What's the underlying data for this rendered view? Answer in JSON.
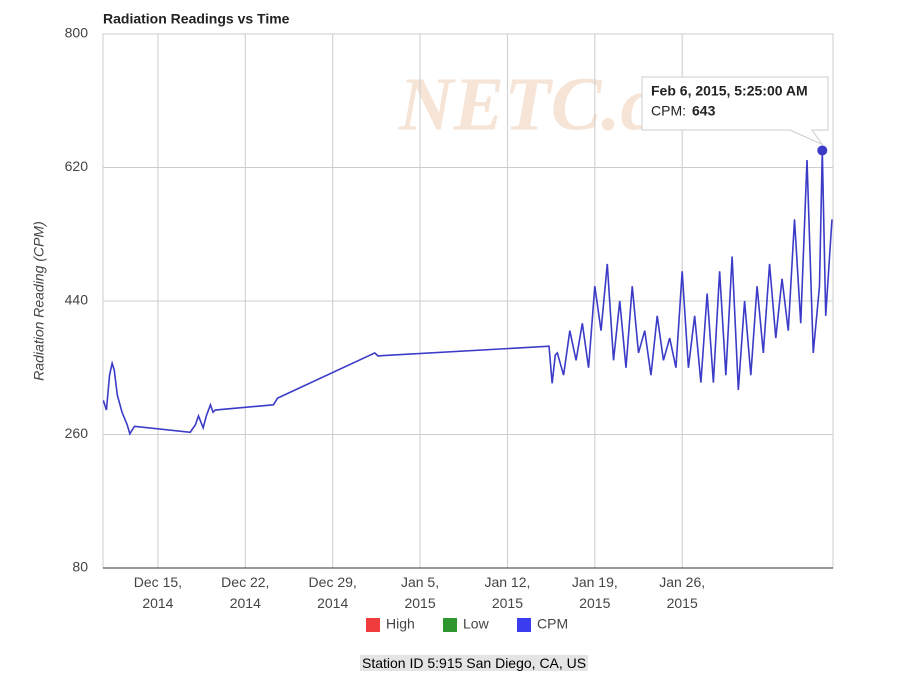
{
  "chart_data": {
    "type": "line",
    "title": "Radiation Readings vs Time",
    "y_label": "Radiation Reading (CPM)",
    "watermark": "NETC.com",
    "footer": "Station ID 5:915  San Diego, CA, US",
    "x": [
      "2014-12-10T15:00",
      "2014-12-10T21:00",
      "2014-12-11T03:00",
      "2014-12-11T08:00",
      "2014-12-11T12:00",
      "2014-12-11T18:00",
      "2014-12-12T03:00",
      "2014-12-12T13:00",
      "2014-12-12T18:00",
      "2014-12-13T03:00",
      "2014-12-17T14:00",
      "2014-12-18T00:00",
      "2014-12-18T06:00",
      "2014-12-18T15:00",
      "2014-12-18T21:00",
      "2014-12-19T05:00",
      "2014-12-19T10:00",
      "2014-12-19T14:00",
      "2014-12-24T06:00",
      "2014-12-24T14:00",
      "2015-01-01T09:00",
      "2015-01-01T15:00",
      "2015-01-15T08:00",
      "2015-01-15T14:00",
      "2015-01-15T20:00",
      "2015-01-16T00:00",
      "2015-01-16T12:00",
      "2015-01-17T00:00",
      "2015-01-17T12:00",
      "2015-01-18T00:00",
      "2015-01-18T12:00",
      "2015-01-19T00:00",
      "2015-01-19T12:00",
      "2015-01-20T00:00",
      "2015-01-20T12:00",
      "2015-01-21T00:00",
      "2015-01-21T12:00",
      "2015-01-22T00:00",
      "2015-01-22T12:00",
      "2015-01-23T00:00",
      "2015-01-23T12:00",
      "2015-01-24T00:00",
      "2015-01-24T12:00",
      "2015-01-25T00:00",
      "2015-01-25T12:00",
      "2015-01-26T00:00",
      "2015-01-26T12:00",
      "2015-01-27T00:00",
      "2015-01-27T12:00",
      "2015-01-28T00:00",
      "2015-01-28T12:00",
      "2015-01-29T00:00",
      "2015-01-29T12:00",
      "2015-01-30T00:00",
      "2015-01-30T12:00",
      "2015-01-31T00:00",
      "2015-01-31T12:00",
      "2015-02-01T00:00",
      "2015-02-01T12:00",
      "2015-02-02T00:00",
      "2015-02-02T12:00",
      "2015-02-03T00:00",
      "2015-02-03T12:00",
      "2015-02-04T00:00",
      "2015-02-04T12:00",
      "2015-02-05T00:00",
      "2015-02-05T12:00",
      "2015-02-06T00:00",
      "2015-02-06T05:25",
      "2015-02-06T12:00",
      "2015-02-07T00:00"
    ],
    "series": [
      {
        "name": "CPM",
        "color": "#3b3bc8",
        "values": [
          306,
          293,
          340,
          356,
          347,
          313,
          290,
          273,
          261,
          271,
          263,
          273,
          285,
          269,
          285,
          300,
          290,
          293,
          300,
          309,
          370,
          366,
          379,
          329,
          367,
          370,
          340,
          400,
          360,
          410,
          350,
          460,
          400,
          490,
          360,
          440,
          350,
          460,
          370,
          400,
          340,
          420,
          360,
          390,
          350,
          480,
          350,
          420,
          330,
          450,
          330,
          480,
          340,
          500,
          320,
          440,
          340,
          460,
          370,
          490,
          390,
          470,
          400,
          550,
          410,
          630,
          370,
          460,
          643,
          420,
          550
        ]
      }
    ],
    "legend": [
      {
        "name": "High",
        "color": "#f03c3c"
      },
      {
        "name": "Low",
        "color": "#2e962e"
      },
      {
        "name": "CPM",
        "color": "#3b3bf0"
      }
    ],
    "xlim": [
      "2014-12-10T14:24",
      "2015-02-07T02:00"
    ],
    "xticks": [
      {
        "value": "2014-12-15T00:00",
        "label": "Dec 15, 2014"
      },
      {
        "value": "2014-12-22T00:00",
        "label": "Dec 22, 2014"
      },
      {
        "value": "2014-12-29T00:00",
        "label": "Dec 29, 2014"
      },
      {
        "value": "2015-01-05T00:00",
        "label": "Jan 5, 2015"
      },
      {
        "value": "2015-01-12T00:00",
        "label": "Jan 12, 2015"
      },
      {
        "value": "2015-01-19T00:00",
        "label": "Jan 19, 2015"
      },
      {
        "value": "2015-01-26T00:00",
        "label": "Jan 26, 2015"
      }
    ],
    "ylim": [
      80,
      800
    ],
    "yticks": [
      80,
      260,
      440,
      620,
      800
    ],
    "grid": true,
    "tooltip": {
      "point": 68,
      "title": "Feb 6, 2015, 5:25:00 AM",
      "label": "CPM:"
    }
  }
}
